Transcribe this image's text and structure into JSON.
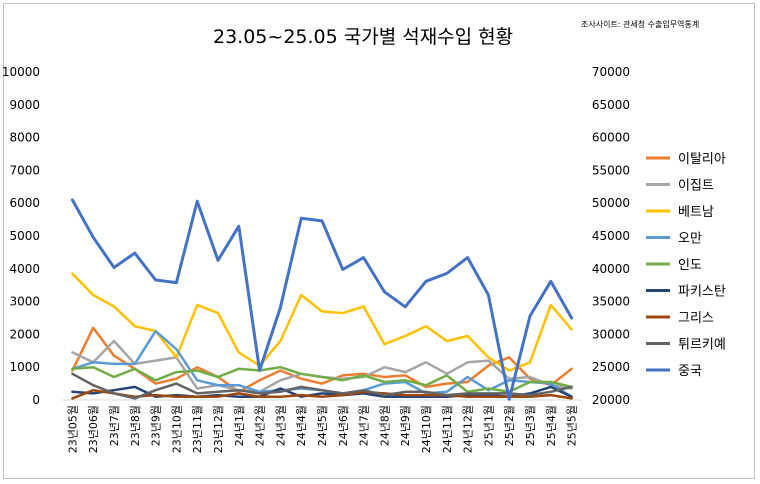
{
  "title": "23.05~25.05 국가별 석재수입 현황",
  "source_note": "조사사이트: 관세청 수출입무역통계",
  "chart_data": {
    "type": "line",
    "categories": [
      "23년05월",
      "23년06월",
      "23년7월",
      "23년8월",
      "23년9월",
      "23년10월",
      "23년11월",
      "23년12월",
      "24년1월",
      "24년2월",
      "24년3월",
      "24년4월",
      "24년5월",
      "24년6월",
      "24년7월",
      "24년8월",
      "24년9월",
      "24년10월",
      "24년11월",
      "24년12월",
      "25년1월",
      "25년2월",
      "25년3월",
      "25년4월",
      "25년5월"
    ],
    "y_left": {
      "min": 0,
      "max": 10000,
      "step": 1000,
      "ticks": [
        "0",
        "1000",
        "2000",
        "3000",
        "4000",
        "5000",
        "6000",
        "7000",
        "8000",
        "9000",
        "10000"
      ]
    },
    "y_right": {
      "min": 20000,
      "max": 70000,
      "step": 5000,
      "ticks": [
        "20000",
        "25000",
        "30000",
        "35000",
        "40000",
        "45000",
        "50000",
        "55000",
        "60000",
        "65000",
        "70000"
      ]
    },
    "grid": false,
    "legend_position": "right",
    "series": [
      {
        "name": "이탈리아",
        "color": "#ed7d31",
        "axis": "left",
        "values": [
          900,
          2200,
          1350,
          950,
          500,
          650,
          1000,
          700,
          250,
          600,
          900,
          650,
          500,
          750,
          800,
          700,
          750,
          400,
          500,
          550,
          1050,
          1300,
          650,
          450,
          950
        ]
      },
      {
        "name": "이집트",
        "color": "#a5a5a5",
        "axis": "left",
        "values": [
          1450,
          1150,
          1800,
          1100,
          1200,
          1300,
          350,
          450,
          300,
          250,
          600,
          800,
          700,
          650,
          700,
          1000,
          850,
          1150,
          800,
          1150,
          1200,
          650,
          700,
          450,
          350
        ]
      },
      {
        "name": "베트남",
        "color": "#ffc000",
        "axis": "left",
        "values": [
          3850,
          3200,
          2850,
          2250,
          2100,
          1300,
          2900,
          2650,
          1450,
          1050,
          1800,
          3200,
          2700,
          2650,
          2850,
          1700,
          1950,
          2250,
          1800,
          1950,
          1300,
          900,
          1150,
          2900,
          2150
        ]
      },
      {
        "name": "오만",
        "color": "#5b9bd5",
        "axis": "left",
        "values": [
          950,
          1150,
          1100,
          1100,
          2100,
          1550,
          600,
          450,
          450,
          250,
          300,
          350,
          300,
          150,
          300,
          500,
          550,
          200,
          250,
          700,
          300,
          600,
          550,
          500,
          100
        ]
      },
      {
        "name": "인도",
        "color": "#70ad47",
        "axis": "left",
        "values": [
          950,
          1000,
          700,
          950,
          600,
          850,
          900,
          700,
          950,
          900,
          1000,
          800,
          700,
          600,
          750,
          550,
          600,
          450,
          750,
          250,
          350,
          250,
          550,
          550,
          400
        ]
      },
      {
        "name": "파키스탄",
        "color": "#264478",
        "axis": "left",
        "values": [
          250,
          200,
          300,
          400,
          100,
          150,
          100,
          150,
          100,
          100,
          350,
          100,
          200,
          150,
          200,
          100,
          100,
          100,
          100,
          150,
          150,
          100,
          200,
          400,
          100
        ]
      },
      {
        "name": "그리스",
        "color": "#9e480e",
        "axis": "left",
        "values": [
          50,
          300,
          200,
          100,
          150,
          100,
          100,
          100,
          200,
          100,
          100,
          150,
          100,
          150,
          250,
          200,
          150,
          150,
          150,
          100,
          100,
          100,
          100,
          150,
          50
        ]
      },
      {
        "name": "튀르키예",
        "color": "#636363",
        "axis": "left",
        "values": [
          800,
          450,
          200,
          50,
          300,
          500,
          200,
          250,
          300,
          200,
          250,
          400,
          300,
          200,
          300,
          150,
          250,
          250,
          150,
          200,
          200,
          200,
          150,
          250,
          400
        ]
      },
      {
        "name": "중국",
        "color": "#4472c4",
        "axis": "right",
        "values": [
          50500,
          44800,
          40200,
          42400,
          38300,
          37900,
          50300,
          41300,
          46500,
          24500,
          34100,
          47700,
          47300,
          39900,
          41700,
          36500,
          34200,
          38100,
          39300,
          41700,
          36000,
          20100,
          32800,
          38100,
          32500
        ]
      }
    ]
  }
}
